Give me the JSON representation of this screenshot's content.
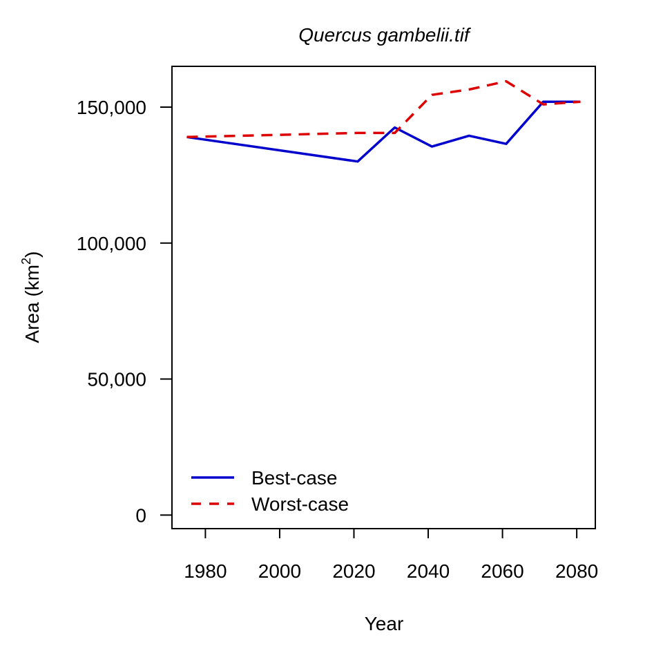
{
  "chart_data": {
    "type": "line",
    "title": "Quercus gambelii.tif",
    "xlabel": "Year",
    "ylabel": "Area (km",
    "ylabel_sup": "2",
    "ylabel_close": ")",
    "xlim": [
      1971,
      2085
    ],
    "ylim": [
      -5000,
      165000
    ],
    "x_ticks": [
      1980,
      2000,
      2020,
      2040,
      2060,
      2080
    ],
    "x_tick_labels": [
      "1980",
      "2000",
      "2020",
      "2040",
      "2060",
      "2080"
    ],
    "y_ticks": [
      0,
      50000,
      100000,
      150000
    ],
    "y_tick_labels": [
      "0",
      "50,000",
      "100,000",
      "150,000"
    ],
    "grid": false,
    "legend_position": "bottom-left",
    "series": [
      {
        "name": "Best-case",
        "color": "#0000CD",
        "dash": "solid",
        "x": [
          1975,
          2021,
          2031,
          2041,
          2051,
          2061,
          2071,
          2081
        ],
        "y": [
          139000,
          130000,
          142500,
          135500,
          139500,
          136500,
          152000,
          152000
        ]
      },
      {
        "name": "Worst-case",
        "color": "#DD0000",
        "dash": "dashed",
        "x": [
          1975,
          2021,
          2031,
          2041,
          2051,
          2061,
          2071,
          2081
        ],
        "y": [
          139000,
          140500,
          140500,
          154500,
          156500,
          159500,
          151000,
          152000
        ]
      }
    ]
  }
}
